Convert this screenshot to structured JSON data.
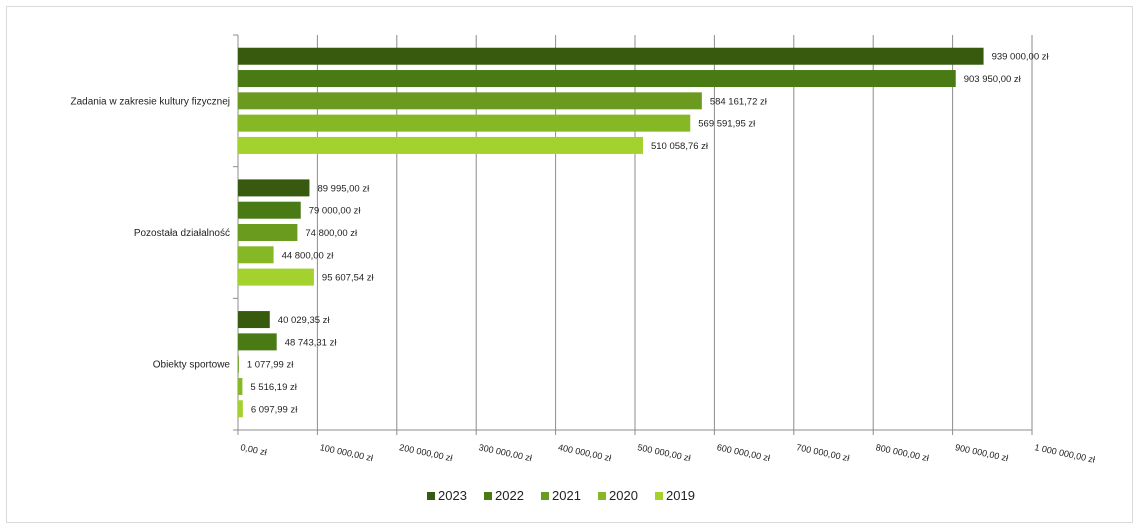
{
  "chart_data": {
    "type": "bar",
    "orientation": "horizontal",
    "categories": [
      "Zadania w zakresie kultury fizycznej",
      "Pozostała działalność",
      "Obiekty sportowe"
    ],
    "series": [
      {
        "name": "2023",
        "color": "#375a0f",
        "values": [
          939000.0,
          89995.0,
          40029.35
        ],
        "labels": [
          "939 000,00 zł",
          "89 995,00 zł",
          "40 029,35 zł"
        ]
      },
      {
        "name": "2022",
        "color": "#4a7a14",
        "values": [
          903950.0,
          79000.0,
          48743.31
        ],
        "labels": [
          "903 950,00 zł",
          "79 000,00 zł",
          "48 743,31 zł"
        ]
      },
      {
        "name": "2021",
        "color": "#6a9a1e",
        "values": [
          584161.72,
          74800.0,
          1077.99
        ],
        "labels": [
          "584 161,72 zł",
          "74 800,00 zł",
          "1 077,99 zł"
        ]
      },
      {
        "name": "2020",
        "color": "#86b826",
        "values": [
          569591.95,
          44800.0,
          5516.19
        ],
        "labels": [
          "569 591,95 zł",
          "44 800,00 zł",
          "5 516,19 zł"
        ]
      },
      {
        "name": "2019",
        "color": "#a3d12e",
        "values": [
          510058.76,
          95607.54,
          6097.99
        ],
        "labels": [
          "510 058,76 zł",
          "95 607,54 zł",
          "6 097,99 zł"
        ]
      }
    ],
    "xlim": [
      0,
      1000000
    ],
    "x_ticks": [
      0,
      100000,
      200000,
      300000,
      400000,
      500000,
      600000,
      700000,
      800000,
      900000,
      1000000
    ],
    "x_tick_labels": [
      "0,00 zł",
      "100 000,00 zł",
      "200 000,00 zł",
      "300 000,00 zł",
      "400 000,00 zł",
      "500 000,00 zł",
      "600 000,00 zł",
      "700 000,00 zł",
      "800 000,00 zł",
      "900 000,00 zł",
      "1 000 000,00 zł"
    ],
    "grid": true,
    "legend_position": "bottom"
  }
}
